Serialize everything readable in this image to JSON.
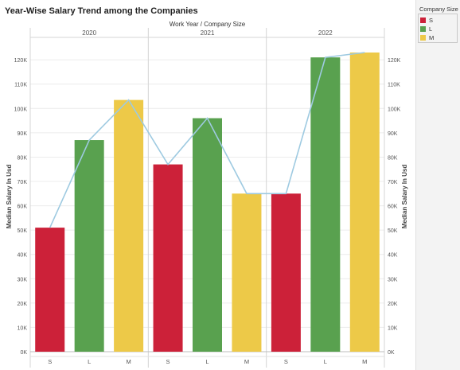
{
  "chart_data": {
    "type": "bar",
    "title": "Year-Wise Salary Trend among the Companies",
    "column_header": "Work Year / Company Size",
    "years": [
      "2020",
      "2021",
      "2022"
    ],
    "categories": [
      "S",
      "L",
      "M"
    ],
    "series": [
      {
        "year": "2020",
        "values": [
          51,
          87,
          103.5
        ]
      },
      {
        "year": "2021",
        "values": [
          77,
          96,
          65
        ]
      },
      {
        "year": "2022",
        "values": [
          65,
          121,
          123
        ]
      }
    ],
    "line_overlay": true,
    "ylabel_left": "Median Salary In Usd",
    "ylabel_right": "Median Salary In Usd",
    "y_ticks": [
      "0K",
      "10K",
      "20K",
      "30K",
      "40K",
      "50K",
      "60K",
      "70K",
      "80K",
      "90K",
      "100K",
      "110K",
      "120K"
    ],
    "ylim": [
      0,
      123
    ],
    "grid": true,
    "legend_position": "right"
  },
  "legend": {
    "title": "Company Size",
    "items": [
      {
        "label": "S",
        "color": "#cc2139"
      },
      {
        "label": "L",
        "color": "#59a14f"
      },
      {
        "label": "M",
        "color": "#edc948"
      }
    ]
  },
  "colors": {
    "S": "#cc2139",
    "L": "#59a14f",
    "M": "#edc948",
    "line": "#9ecae1"
  }
}
